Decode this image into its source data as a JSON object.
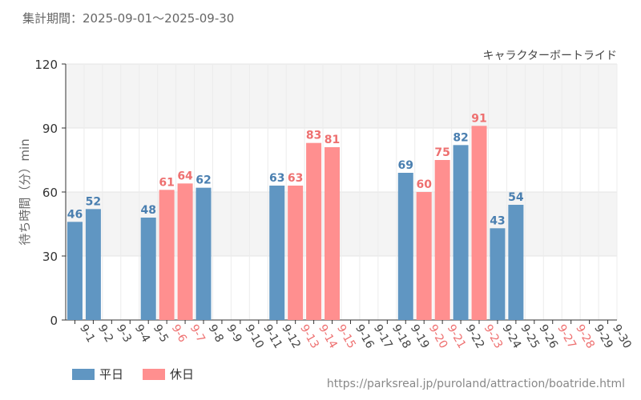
{
  "header": {
    "period_text": "集計期間：2025-09-01～2025-09-30"
  },
  "footer": {
    "source_url": "https://parksreal.jp/puroland/attraction/boatride.html"
  },
  "colors": {
    "weekday": "#6096C2",
    "holiday": "#FF8F8F",
    "weekday_text": "#4A7FB0",
    "holiday_text": "#EE7070"
  },
  "chart_data": {
    "type": "bar",
    "title": "キャラクターボートライド",
    "ylabel": "待ち時間（分）min",
    "xlabel": "",
    "ylim": [
      0,
      120
    ],
    "yticks": [
      0,
      30,
      60,
      90,
      120
    ],
    "grid": true,
    "legend_position": "bottom-left",
    "categories": [
      "9-1",
      "9-2",
      "9-3",
      "9-4",
      "9-5",
      "9-6",
      "9-7",
      "9-8",
      "9-9",
      "9-10",
      "9-11",
      "9-12",
      "9-13",
      "9-14",
      "9-15",
      "9-16",
      "9-17",
      "9-18",
      "9-19",
      "9-20",
      "9-21",
      "9-22",
      "9-23",
      "9-24",
      "9-25",
      "9-26",
      "9-27",
      "9-28",
      "9-29",
      "9-30"
    ],
    "day_type": [
      "weekday",
      "weekday",
      "weekday",
      "weekday",
      "weekday",
      "holiday",
      "holiday",
      "weekday",
      "weekday",
      "weekday",
      "weekday",
      "weekday",
      "holiday",
      "holiday",
      "holiday",
      "weekday",
      "weekday",
      "weekday",
      "weekday",
      "holiday",
      "holiday",
      "weekday",
      "holiday",
      "weekday",
      "weekday",
      "weekday",
      "holiday",
      "holiday",
      "weekday",
      "weekday"
    ],
    "values": [
      46,
      52,
      null,
      null,
      48,
      61,
      64,
      62,
      null,
      null,
      null,
      63,
      63,
      83,
      81,
      null,
      null,
      null,
      69,
      60,
      75,
      82,
      91,
      43,
      54,
      null,
      null,
      null,
      null,
      null
    ],
    "series": [
      {
        "name": "平日",
        "key": "weekday"
      },
      {
        "name": "休日",
        "key": "holiday"
      }
    ]
  }
}
